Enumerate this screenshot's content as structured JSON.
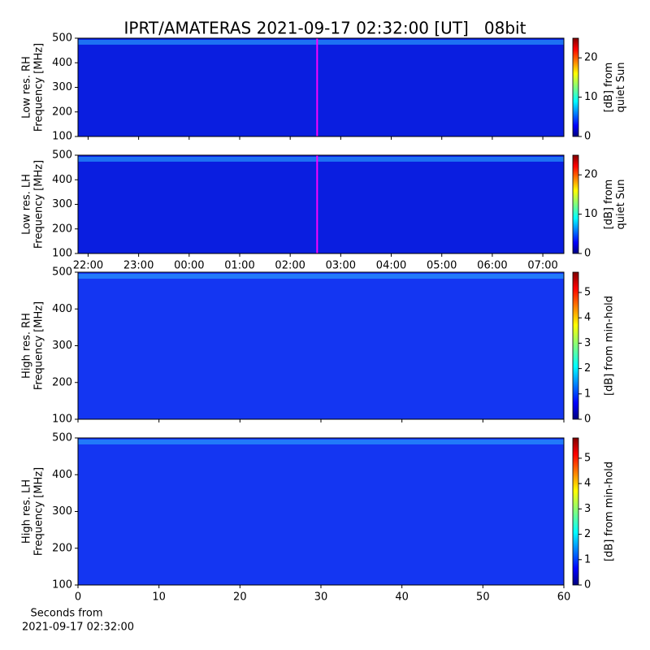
{
  "chart_data": [
    {
      "type": "heatmap",
      "title": "IPRT/AMATERAS 2021-09-17 02:32:00 [UT]   08bit",
      "ylabel": [
        "Low res. RH",
        "Frequency [MHz]"
      ],
      "ylim": [
        100,
        500
      ],
      "yticks": [
        100,
        200,
        300,
        400,
        500
      ],
      "xlim": [
        "21:48",
        "07:25"
      ],
      "marker_x": "02:32",
      "marker_color": "#ff00ff",
      "colormap": "jet",
      "colorbar": {
        "label": [
          "[dB] from",
          "quiet Sun"
        ],
        "lim": [
          0,
          25
        ],
        "ticks": [
          0,
          10,
          20
        ]
      }
    },
    {
      "type": "heatmap",
      "ylabel": [
        "Low res. LH",
        "Frequency [MHz]"
      ],
      "ylim": [
        100,
        500
      ],
      "yticks": [
        100,
        200,
        300,
        400,
        500
      ],
      "xlim": [
        "21:48",
        "07:25"
      ],
      "xticks": [
        "22:00",
        "23:00",
        "00:00",
        "01:00",
        "02:00",
        "03:00",
        "04:00",
        "05:00",
        "06:00",
        "07:00"
      ],
      "marker_x": "02:32",
      "marker_color": "#ff00ff",
      "colormap": "jet",
      "colorbar": {
        "label": [
          "[dB] from",
          "quiet Sun"
        ],
        "lim": [
          0,
          25
        ],
        "ticks": [
          0,
          10,
          20
        ]
      }
    },
    {
      "type": "heatmap",
      "ylabel": [
        "High res. RH",
        "Frequency [MHz]"
      ],
      "ylim": [
        100,
        500
      ],
      "yticks": [
        100,
        200,
        300,
        400,
        500
      ],
      "xlim": [
        0,
        60
      ],
      "colormap": "jet",
      "colorbar": {
        "label": [
          "[dB] from min-hold"
        ],
        "lim": [
          0,
          5.8
        ],
        "ticks": [
          0,
          1,
          2,
          3,
          4,
          5
        ]
      }
    },
    {
      "type": "heatmap",
      "ylabel": [
        "High res. LH",
        "Frequency [MHz]"
      ],
      "ylim": [
        100,
        500
      ],
      "yticks": [
        100,
        200,
        300,
        400,
        500
      ],
      "xlim": [
        0,
        60
      ],
      "xticks": [
        0,
        10,
        20,
        30,
        40,
        50,
        60
      ],
      "xlabel": [
        "Seconds from",
        "2021-09-17 02:32:00"
      ],
      "colormap": "jet",
      "colorbar": {
        "label": [
          "[dB] from min-hold"
        ],
        "lim": [
          0,
          5.8
        ],
        "ticks": [
          0,
          1,
          2,
          3,
          4,
          5
        ]
      }
    }
  ]
}
